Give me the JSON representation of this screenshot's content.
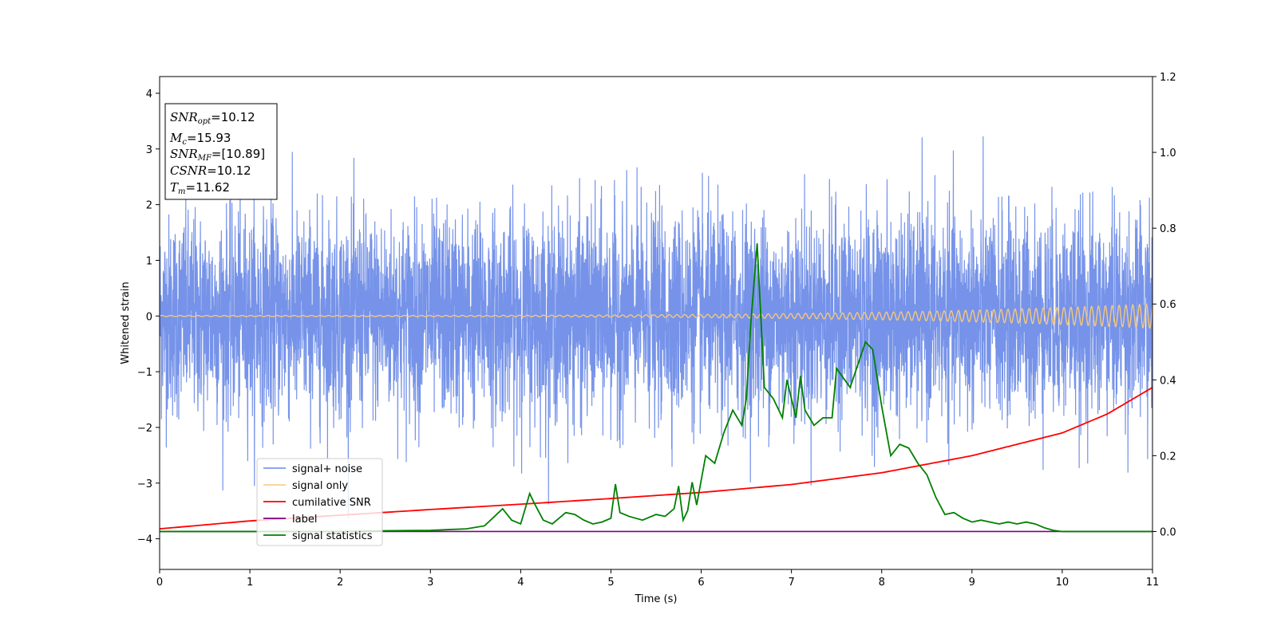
{
  "chart_data": {
    "type": "line",
    "title": "",
    "xlabel": "Time (s)",
    "ylabel": "Whitened strain",
    "xlim": [
      0,
      11
    ],
    "ylim": [
      -4.55,
      4.3
    ],
    "y2lim": [
      -0.1,
      1.2
    ],
    "xticks": [
      0,
      1,
      2,
      3,
      4,
      5,
      6,
      7,
      8,
      9,
      10,
      11
    ],
    "yticks": [
      -4,
      -3,
      -2,
      -1,
      0,
      1,
      2,
      3,
      4
    ],
    "y2ticks": [
      "0.0",
      "0.2",
      "0.4",
      "0.6",
      "0.8",
      "1.0",
      "1.2"
    ],
    "legend_position": "lower-left",
    "info_box": {
      "position": "top-left",
      "lines": [
        {
          "sym": "SNR",
          "sub": "opt",
          "val": "=10.12"
        },
        {
          "sym": "M",
          "sub": "c",
          "val": "=15.93"
        },
        {
          "sym": "SNR",
          "sub": "MF",
          "val": "=[10.89]"
        },
        {
          "sym": "CSNR",
          "sub": "",
          "val": "=10.12"
        },
        {
          "sym": "T",
          "sub": "m",
          "val": "=11.62"
        }
      ]
    },
    "series": [
      {
        "name": "signal+ noise",
        "color": "#4169e1",
        "axis": "left",
        "style": "random noise, std ~0.9, range approx -4.15 to 3.5",
        "samples": 5500
      },
      {
        "name": "signal only",
        "color": "#f5c77e",
        "axis": "left",
        "style": "chirp oscillation, amplitude ~0.01 at t=0 rising to ~0.22 at t=11",
        "amplitude_start": 0.01,
        "amplitude_end": 0.22
      },
      {
        "name": "cumilative SNR",
        "color": "#ff0000",
        "axis": "right",
        "x": [
          0,
          1,
          2,
          3,
          4,
          5,
          6,
          7,
          8,
          9,
          10,
          10.5,
          11
        ],
        "values": [
          0.007,
          0.028,
          0.043,
          0.058,
          0.072,
          0.087,
          0.103,
          0.124,
          0.155,
          0.2,
          0.26,
          0.31,
          0.38
        ]
      },
      {
        "name": "label",
        "color": "#800080",
        "axis": "right",
        "x": [
          0,
          11
        ],
        "values": [
          0.0,
          0.0
        ]
      },
      {
        "name": "signal statistics",
        "color": "#008000",
        "axis": "right",
        "x": [
          0,
          0.5,
          1,
          1.5,
          2,
          2.5,
          3,
          3.2,
          3.4,
          3.6,
          3.8,
          3.9,
          4.0,
          4.1,
          4.15,
          4.25,
          4.35,
          4.5,
          4.6,
          4.7,
          4.8,
          4.9,
          5.0,
          5.05,
          5.1,
          5.2,
          5.35,
          5.5,
          5.6,
          5.7,
          5.75,
          5.8,
          5.85,
          5.9,
          5.95,
          6.05,
          6.15,
          6.25,
          6.35,
          6.45,
          6.5,
          6.55,
          6.62,
          6.7,
          6.8,
          6.9,
          6.95,
          7.05,
          7.1,
          7.15,
          7.25,
          7.35,
          7.45,
          7.5,
          7.65,
          7.75,
          7.82,
          7.9,
          8.0,
          8.1,
          8.2,
          8.3,
          8.4,
          8.5,
          8.6,
          8.7,
          8.8,
          8.9,
          9.0,
          9.1,
          9.3,
          9.4,
          9.5,
          9.6,
          9.7,
          9.8,
          9.9,
          10.0,
          10.5,
          11
        ],
        "values": [
          0.0,
          0.0,
          0.0,
          0.0,
          0.0,
          0.002,
          0.003,
          0.005,
          0.007,
          0.015,
          0.06,
          0.03,
          0.02,
          0.1,
          0.075,
          0.03,
          0.02,
          0.05,
          0.045,
          0.03,
          0.02,
          0.025,
          0.035,
          0.125,
          0.05,
          0.04,
          0.03,
          0.045,
          0.04,
          0.06,
          0.12,
          0.03,
          0.055,
          0.13,
          0.07,
          0.2,
          0.18,
          0.26,
          0.32,
          0.28,
          0.35,
          0.55,
          0.76,
          0.38,
          0.35,
          0.3,
          0.4,
          0.3,
          0.41,
          0.32,
          0.28,
          0.3,
          0.3,
          0.43,
          0.38,
          0.45,
          0.5,
          0.48,
          0.33,
          0.2,
          0.23,
          0.22,
          0.18,
          0.15,
          0.09,
          0.045,
          0.05,
          0.035,
          0.025,
          0.03,
          0.02,
          0.025,
          0.02,
          0.025,
          0.02,
          0.01,
          0.003,
          0.0,
          0.0,
          0.0
        ]
      }
    ]
  }
}
